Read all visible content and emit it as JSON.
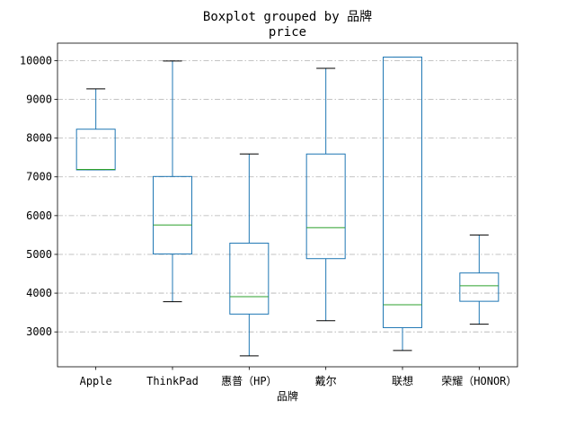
{
  "chart_data": {
    "type": "boxplot",
    "suptitle": "Boxplot grouped by 品牌",
    "title": "price",
    "xlabel": "品牌",
    "ylabel": "",
    "ylim": [
      2100,
      10450
    ],
    "yticks": [
      3000,
      4000,
      5000,
      6000,
      7000,
      8000,
      9000,
      10000
    ],
    "grid": "y-dashdot",
    "colors": {
      "box": "#1f77b4",
      "median": "#2ca02c",
      "whisker_cap": "#000000",
      "grid": "#b0b0b0"
    },
    "categories": [
      "Apple",
      "ThinkPad",
      "惠普（HP）",
      "戴尔",
      "联想",
      "荣耀（HONOR）"
    ],
    "boxes": [
      {
        "category": "Apple",
        "whislo": 7180,
        "q1": 7180,
        "med": 7190,
        "q3": 8230,
        "whishi": 9270
      },
      {
        "category": "ThinkPad",
        "whislo": 3780,
        "q1": 5010,
        "med": 5760,
        "q3": 7010,
        "whishi": 9990
      },
      {
        "category": "惠普（HP）",
        "whislo": 2380,
        "q1": 3460,
        "med": 3910,
        "q3": 5290,
        "whishi": 7590
      },
      {
        "category": "戴尔",
        "whislo": 3290,
        "q1": 4890,
        "med": 5690,
        "q3": 7590,
        "whishi": 9800
      },
      {
        "category": "联想",
        "whislo": 2520,
        "q1": 3110,
        "med": 3700,
        "q3": 10090,
        "whishi": 10090
      },
      {
        "category": "荣耀（HONOR）",
        "whislo": 3200,
        "q1": 3790,
        "med": 4190,
        "q3": 4520,
        "whishi": 5500
      }
    ]
  }
}
